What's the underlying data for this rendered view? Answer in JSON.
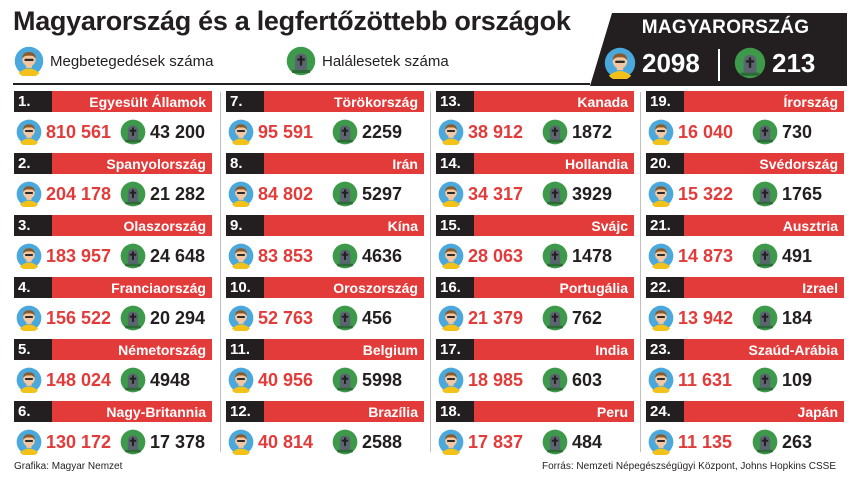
{
  "title": "Magyarország és a legfertőzöttebb országok",
  "legend": {
    "cases_label": "Megbetegedések száma",
    "deaths_label": "Halálesetek száma",
    "cases_icon": "person-icon",
    "deaths_icon": "grave-cross-icon"
  },
  "hungary": {
    "name": "MAGYARORSZÁG",
    "cases": "2098",
    "deaths": "213"
  },
  "colors": {
    "accent_red": "#e23b3a",
    "dark": "#231f20"
  },
  "countries": [
    {
      "rank": "1.",
      "name": "Egyesült Államok",
      "cases": "810 561",
      "deaths": "43 200"
    },
    {
      "rank": "2.",
      "name": "Spanyolország",
      "cases": "204 178",
      "deaths": "21 282"
    },
    {
      "rank": "3.",
      "name": "Olaszország",
      "cases": "183 957",
      "deaths": "24 648"
    },
    {
      "rank": "4.",
      "name": "Franciaország",
      "cases": "156 522",
      "deaths": "20 294"
    },
    {
      "rank": "5.",
      "name": "Németország",
      "cases": "148 024",
      "deaths": "4948"
    },
    {
      "rank": "6.",
      "name": "Nagy-Britannia",
      "cases": "130 172",
      "deaths": "17 378"
    },
    {
      "rank": "7.",
      "name": "Törökország",
      "cases": "95 591",
      "deaths": "2259"
    },
    {
      "rank": "8.",
      "name": "Irán",
      "cases": "84 802",
      "deaths": "5297"
    },
    {
      "rank": "9.",
      "name": "Kína",
      "cases": "83 853",
      "deaths": "4636"
    },
    {
      "rank": "10.",
      "name": "Oroszország",
      "cases": "52 763",
      "deaths": "456"
    },
    {
      "rank": "11.",
      "name": "Belgium",
      "cases": "40 956",
      "deaths": "5998"
    },
    {
      "rank": "12.",
      "name": "Brazília",
      "cases": "40 814",
      "deaths": "2588"
    },
    {
      "rank": "13.",
      "name": "Kanada",
      "cases": "38 912",
      "deaths": "1872"
    },
    {
      "rank": "14.",
      "name": "Hollandia",
      "cases": "34 317",
      "deaths": "3929"
    },
    {
      "rank": "15.",
      "name": "Svájc",
      "cases": "28 063",
      "deaths": "1478"
    },
    {
      "rank": "16.",
      "name": "Portugália",
      "cases": "21 379",
      "deaths": "762"
    },
    {
      "rank": "17.",
      "name": "India",
      "cases": "18 985",
      "deaths": "603"
    },
    {
      "rank": "18.",
      "name": "Peru",
      "cases": "17 837",
      "deaths": "484"
    },
    {
      "rank": "19.",
      "name": "Írország",
      "cases": "16 040",
      "deaths": "730"
    },
    {
      "rank": "20.",
      "name": "Svédország",
      "cases": "15 322",
      "deaths": "1765"
    },
    {
      "rank": "21.",
      "name": "Ausztria",
      "cases": "14 873",
      "deaths": "491"
    },
    {
      "rank": "22.",
      "name": "Izrael",
      "cases": "13 942",
      "deaths": "184"
    },
    {
      "rank": "23.",
      "name": "Szaúd-Arábia",
      "cases": "11 631",
      "deaths": "109"
    },
    {
      "rank": "24.",
      "name": "Japán",
      "cases": "11 135",
      "deaths": "263"
    }
  ],
  "footer": {
    "credit": "Grafika: Magyar Nemzet",
    "source": "Forrás: Nemzeti Népegészségügyi Központ, Johns Hopkins CSSE"
  }
}
